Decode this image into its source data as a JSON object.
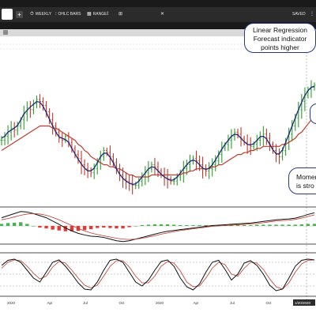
{
  "toolbar": {
    "timeframe": "WEEKLY",
    "chart_type": "OHLC BARS",
    "range": "RANGE",
    "saved": "SAVED"
  },
  "annotations": {
    "regression": [
      "Linear Regression",
      "Forecast indicator",
      "points higher"
    ],
    "momentum": [
      "Momen",
      "is stro"
    ]
  },
  "colors": {
    "bull_bar": "#2e9d2e",
    "bear_bar": "#c0392b",
    "linear_regression": "#1f2a7a",
    "moving_average": "#c0392b",
    "histogram_up": "#4caf50",
    "histogram_down": "#e53935",
    "callout_border": "#273a8a"
  },
  "chart_data": {
    "type": "line",
    "x_ticks": [
      "2020",
      "Apr",
      "Jul",
      "Oct",
      "2020",
      "Apr",
      "Jul",
      "Oct",
      "1/20/2020"
    ],
    "price": {
      "closes": [
        60,
        62,
        64,
        66,
        65,
        67,
        70,
        73,
        76,
        75,
        78,
        80,
        79,
        77,
        74,
        70,
        67,
        64,
        61,
        60,
        62,
        59,
        56,
        53,
        51,
        48,
        46,
        45,
        44,
        46,
        49,
        52,
        55,
        54,
        52,
        49,
        46,
        43,
        41,
        40,
        39,
        38,
        38,
        40,
        42,
        44,
        46,
        48,
        47,
        45,
        43,
        42,
        41,
        40,
        40,
        42,
        44,
        46,
        48,
        50,
        51,
        50,
        48,
        46,
        45,
        46,
        48,
        50,
        53,
        56,
        58,
        60,
        62,
        64,
        63,
        61,
        59,
        58,
        57,
        58,
        60,
        62,
        63,
        61,
        58,
        55,
        53,
        52,
        55,
        59,
        63,
        67,
        71,
        75,
        79,
        82,
        85,
        86,
        87
      ],
      "moving_average": [
        55,
        56,
        57,
        58,
        59,
        60,
        61,
        62,
        63,
        64,
        65,
        66,
        67,
        67,
        67,
        67,
        66,
        66,
        65,
        64,
        63,
        62,
        61,
        60,
        58,
        57,
        55,
        54,
        52,
        51,
        50,
        49,
        48,
        48,
        47,
        47,
        46,
        46,
        45,
        44,
        43,
        43,
        42,
        42,
        42,
        42,
        42,
        43,
        43,
        43,
        43,
        43,
        43,
        43,
        43,
        43,
        43,
        44,
        44,
        45,
        45,
        46,
        46,
        46,
        46,
        46,
        47,
        47,
        48,
        48,
        49,
        50,
        51,
        52,
        53,
        53,
        54,
        54,
        55,
        55,
        56,
        56,
        57,
        57,
        57,
        57,
        57,
        57,
        58,
        58,
        59,
        60,
        61,
        63,
        64,
        66,
        68,
        70,
        71
      ]
    },
    "macd": {
      "macd_line": [
        2,
        2.5,
        3,
        3.5,
        3.4,
        3,
        2.5,
        2,
        1.2,
        0.4,
        -0.5,
        -1.2,
        -1.8,
        -2.2,
        -2.5,
        -2.6,
        -2.8,
        -3.2,
        -3.6,
        -3.8,
        -3.6,
        -3.2,
        -2.8,
        -2.4,
        -2,
        -1.6,
        -1.3,
        -1.1,
        -0.9,
        -0.7,
        -0.5,
        -0.3,
        -0.1,
        0.1,
        0.2,
        0.3,
        0.4,
        0.5,
        0.6,
        0.7,
        0.9,
        1.1,
        1.3,
        1.5,
        1.6,
        1.7,
        1.9,
        2.3,
        2.8,
        3.2
      ],
      "signal_line": [
        1.5,
        1.8,
        2.2,
        2.6,
        2.9,
        3,
        2.9,
        2.6,
        2.1,
        1.5,
        0.8,
        0.1,
        -0.6,
        -1.2,
        -1.7,
        -2.1,
        -2.4,
        -2.7,
        -3,
        -3.2,
        -3.3,
        -3.2,
        -3,
        -2.7,
        -2.4,
        -2,
        -1.7,
        -1.4,
        -1.1,
        -0.9,
        -0.7,
        -0.5,
        -0.3,
        -0.1,
        0,
        0.1,
        0.2,
        0.3,
        0.4,
        0.5,
        0.6,
        0.8,
        1,
        1.2,
        1.3,
        1.4,
        1.6,
        1.9,
        2.3,
        2.7
      ],
      "histogram": [
        0.5,
        0.7,
        0.8,
        0.9,
        0.5,
        0,
        -0.4,
        -0.6,
        -0.9,
        -1.1,
        -1.3,
        -1.3,
        -1.2,
        -1,
        -0.8,
        -0.5,
        -0.4,
        -0.5,
        -0.6,
        -0.6,
        -0.3,
        0,
        0.2,
        0.3,
        0.4,
        0.4,
        0.4,
        0.3,
        0.2,
        0.2,
        0.2,
        0.2,
        0.2,
        0.2,
        0.2,
        0.2,
        0.2,
        0.2,
        0.2,
        0.2,
        0.3,
        0.3,
        0.3,
        0.3,
        0.3,
        0.3,
        0.3,
        0.4,
        0.5,
        0.5
      ]
    },
    "stochastic": {
      "k_line": [
        72,
        85,
        88,
        80,
        60,
        40,
        30,
        55,
        80,
        86,
        70,
        50,
        28,
        12,
        10,
        30,
        60,
        85,
        88,
        80,
        55,
        30,
        20,
        35,
        60,
        82,
        86,
        70,
        40,
        18,
        10,
        25,
        55,
        80,
        85,
        62,
        35,
        50,
        78,
        84,
        72,
        50,
        22,
        8,
        12,
        40,
        70,
        85,
        88,
        86
      ],
      "d_line": [
        65,
        80,
        86,
        84,
        70,
        52,
        38,
        45,
        68,
        82,
        78,
        60,
        40,
        22,
        15,
        22,
        45,
        70,
        84,
        84,
        68,
        45,
        28,
        28,
        45,
        70,
        82,
        78,
        58,
        30,
        18,
        20,
        40,
        65,
        80,
        74,
        50,
        45,
        65,
        80,
        78,
        62,
        38,
        18,
        12,
        28,
        55,
        76,
        85,
        86
      ],
      "levels": [
        80,
        50,
        20
      ]
    }
  }
}
